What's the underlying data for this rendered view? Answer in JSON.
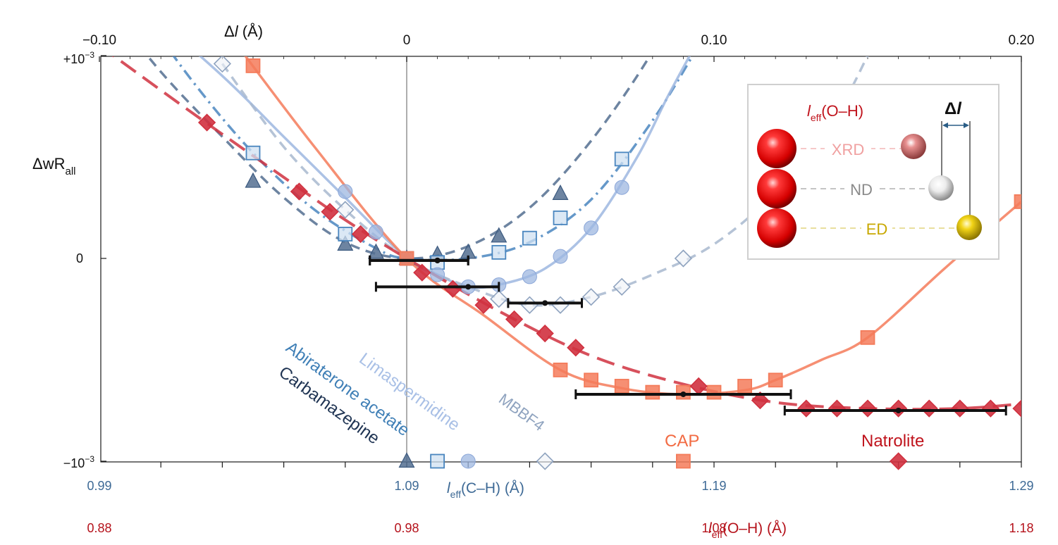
{
  "chart_data": {
    "type": "scatter",
    "top_axis": {
      "label_main": "Δ",
      "label_var": "l",
      "label_unit": "(Å)",
      "range": [
        -0.1,
        0.2
      ],
      "ticks": [
        {
          "v": -0.1,
          "label": "−0.10"
        },
        {
          "v": 0.0,
          "label": "0"
        },
        {
          "v": 0.1,
          "label": "0.10"
        },
        {
          "v": 0.2,
          "label": "0.20"
        }
      ]
    },
    "y_axis": {
      "label_main": "ΔwR",
      "label_sub": "all",
      "range": [
        -1,
        1
      ],
      "ticks": [
        {
          "v": 1,
          "label": "+10",
          "sup": "−3"
        },
        {
          "v": 0,
          "label": "0",
          "sup": ""
        },
        {
          "v": -1,
          "label": "−10",
          "sup": "−3"
        }
      ]
    },
    "bottom_axis_CH": {
      "label_pre": "l",
      "label_sub": "eff",
      "label_post": "(C–H) (Å)",
      "color": "#3e6a96",
      "ticks": [
        {
          "dl": -0.1,
          "label": "0.99"
        },
        {
          "dl": 0.0,
          "label": "1.09"
        },
        {
          "dl": 0.1,
          "label": "1.19"
        },
        {
          "dl": 0.2,
          "label": "1.29"
        }
      ]
    },
    "bottom_axis_OH": {
      "label_pre": "l",
      "label_sub": "eff",
      "label_post": "(O–H) (Å)",
      "color": "#b5121b",
      "ticks": [
        {
          "dl": -0.1,
          "label": "0.88"
        },
        {
          "dl": 0.0,
          "label": "0.98"
        },
        {
          "dl": 0.1,
          "label": "1.08"
        },
        {
          "dl": 0.2,
          "label": "1.18"
        }
      ]
    },
    "series": [
      {
        "name": "Carbamazepine",
        "marker": "triangle",
        "color": "#536f91",
        "line_style": "dashed",
        "x": [
          -0.05,
          -0.02,
          -0.01,
          0.0,
          0.01,
          0.02,
          0.03,
          0.05
        ],
        "y": [
          0.38,
          0.07,
          0.03,
          0.0,
          0.02,
          0.03,
          0.11,
          0.32
        ],
        "curve_x": [
          -0.1,
          -0.08,
          -0.06,
          -0.04,
          -0.02,
          0.0,
          0.02,
          0.04,
          0.06,
          0.08,
          0.095
        ],
        "curve_y": [
          1.3,
          0.92,
          0.6,
          0.3,
          0.08,
          0.0,
          0.06,
          0.25,
          0.58,
          1.02,
          1.45
        ],
        "min_x": 0.01,
        "min_y": -0.01,
        "err_lo": -0.012,
        "err_hi": 0.02
      },
      {
        "name": "Abiraterone acetate",
        "marker": "square",
        "color": "#4a86bf",
        "line_style": "dashdot",
        "x": [
          -0.05,
          -0.02,
          0.0,
          0.01,
          0.03,
          0.04,
          0.05,
          0.07
        ],
        "y": [
          0.52,
          0.12,
          0.0,
          -0.02,
          0.03,
          0.1,
          0.2,
          0.49
        ],
        "curve_x": [
          -0.09,
          -0.07,
          -0.05,
          -0.03,
          -0.01,
          0.0,
          0.02,
          0.04,
          0.06,
          0.08,
          0.095
        ],
        "curve_y": [
          1.3,
          0.88,
          0.52,
          0.24,
          0.05,
          0.0,
          0.0,
          0.08,
          0.29,
          0.68,
          1.05
        ],
        "min_x": 0.01,
        "min_y": -0.01,
        "err_lo": -0.012,
        "err_hi": 0.02
      },
      {
        "name": "Limaspermidine",
        "marker": "circle",
        "color": "#9db7e0",
        "line_style": "solid",
        "x": [
          -0.02,
          -0.01,
          0.0,
          0.01,
          0.02,
          0.03,
          0.04,
          0.05,
          0.06,
          0.07
        ],
        "y": [
          0.33,
          0.13,
          0.0,
          -0.08,
          -0.14,
          -0.13,
          -0.09,
          0.01,
          0.15,
          0.35
        ],
        "curve_x": [
          -0.09,
          -0.06,
          -0.04,
          -0.02,
          0.0,
          0.01,
          0.02,
          0.03,
          0.045,
          0.06,
          0.075,
          0.085,
          0.095
        ],
        "curve_y": [
          1.3,
          0.9,
          0.6,
          0.3,
          0.0,
          -0.08,
          -0.14,
          -0.13,
          -0.05,
          0.15,
          0.5,
          0.8,
          1.08
        ],
        "min_x": 0.02,
        "min_y": -0.14,
        "err_lo": -0.01,
        "err_hi": 0.03
      },
      {
        "name": "MBBF4",
        "marker": "diamond",
        "color": "#a8b9cf",
        "line_style": "dashed",
        "x": [
          -0.06,
          -0.02,
          0.03,
          0.04,
          0.05,
          0.06,
          0.07,
          0.09
        ],
        "y": [
          0.96,
          0.24,
          -0.2,
          -0.23,
          -0.23,
          -0.19,
          -0.14,
          0.0
        ],
        "curve_x": [
          -0.06,
          -0.04,
          -0.02,
          0.0,
          0.02,
          0.04,
          0.06,
          0.08,
          0.1,
          0.12,
          0.14,
          0.15
        ],
        "curve_y": [
          0.96,
          0.55,
          0.24,
          0.0,
          -0.14,
          -0.23,
          -0.19,
          -0.08,
          0.07,
          0.33,
          0.72,
          1.0
        ],
        "min_x": 0.045,
        "min_y": -0.22,
        "err_lo": 0.033,
        "err_hi": 0.057
      },
      {
        "name": "CAP",
        "marker": "square",
        "color": "#f47b5a",
        "line_style": "solid",
        "x": [
          -0.05,
          0.0,
          0.05,
          0.06,
          0.07,
          0.08,
          0.09,
          0.1,
          0.11,
          0.12,
          0.15,
          0.2
        ],
        "y": [
          0.95,
          0.0,
          -0.55,
          -0.6,
          -0.63,
          -0.66,
          -0.66,
          -0.66,
          -0.63,
          -0.6,
          -0.39,
          0.28
        ],
        "curve_x": [
          -0.06,
          -0.03,
          0.0,
          0.025,
          0.05,
          0.07,
          0.09,
          0.11,
          0.12,
          0.135,
          0.15,
          0.175,
          0.2,
          0.205
        ],
        "curve_y": [
          1.15,
          0.55,
          0.0,
          -0.28,
          -0.55,
          -0.64,
          -0.67,
          -0.65,
          -0.6,
          -0.5,
          -0.39,
          -0.05,
          0.28,
          0.34
        ],
        "min_x": 0.09,
        "min_y": -0.67,
        "err_lo": 0.055,
        "err_hi": 0.125
      },
      {
        "name": "Natrolite",
        "marker": "diamond",
        "color": "#d0313f",
        "line_style": "longdash",
        "x": [
          -0.065,
          -0.035,
          -0.025,
          -0.015,
          0.005,
          0.015,
          0.025,
          0.035,
          0.045,
          0.055,
          0.095,
          0.115,
          0.13,
          0.14,
          0.15,
          0.16,
          0.17,
          0.18,
          0.19,
          0.2
        ],
        "y": [
          0.67,
          0.33,
          0.23,
          0.12,
          -0.07,
          -0.15,
          -0.23,
          -0.3,
          -0.37,
          -0.44,
          -0.63,
          -0.7,
          -0.74,
          -0.74,
          -0.74,
          -0.74,
          -0.74,
          -0.74,
          -0.74,
          -0.74
        ],
        "curve_x": [
          -0.1,
          -0.07,
          -0.04,
          -0.02,
          0.0,
          0.03,
          0.06,
          0.09,
          0.12,
          0.15,
          0.18,
          0.205
        ],
        "curve_y": [
          1.05,
          0.72,
          0.4,
          0.19,
          0.0,
          -0.26,
          -0.48,
          -0.62,
          -0.71,
          -0.74,
          -0.74,
          -0.71
        ],
        "min_x": 0.16,
        "min_y": -0.75,
        "err_lo": 0.123,
        "err_hi": 0.195
      }
    ],
    "series_labels": {
      "limaspermidine": "Limaspermidine",
      "abiraterone": "Abiraterone acetate",
      "carbamazepine": "Carbamazepine",
      "mbbf4": "MBBF4",
      "cap": "CAP",
      "natrolite": "Natrolite"
    },
    "legend_box": {
      "title_pre": "l",
      "title_sub": "eff",
      "title_post": "(O–H)",
      "delta_main": "Δ",
      "delta_var": "l",
      "rows": [
        {
          "label": "XRD",
          "text_color": "#f0a0a0",
          "dash_color": "#f6c8c8",
          "ball": "#d87a7a"
        },
        {
          "label": "ND",
          "text_color": "#8a8a8a",
          "dash_color": "#c4c4c4",
          "ball": "#eeeeee"
        },
        {
          "label": "ED",
          "text_color": "#c8a800",
          "dash_color": "#e9df9e",
          "ball": "#e3c60e"
        }
      ]
    },
    "grid": false,
    "colors": {
      "ch_axis": "#3e6a96",
      "oh_axis": "#b5121b",
      "error_bar": "#111111"
    }
  }
}
